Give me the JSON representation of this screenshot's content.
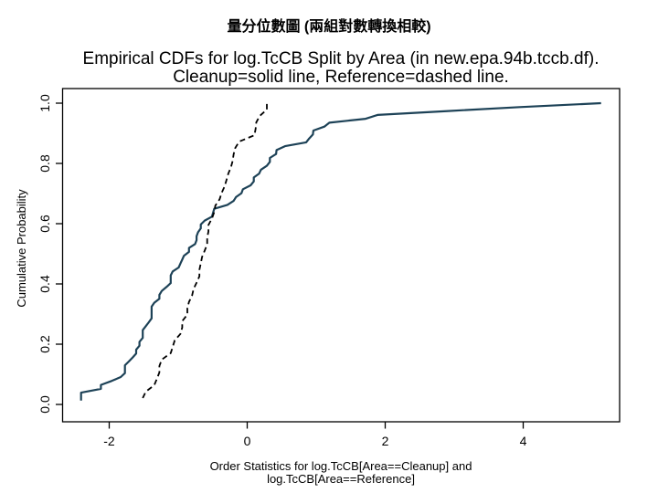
{
  "slide": {
    "title_zh": "量分位數圖 (兩組對數轉換相較)"
  },
  "chart_data": {
    "type": "line",
    "subtype": "empirical-cdf",
    "title_line1": "Empirical CDFs for log.TcCB Split by Area (in new.epa.94b.tccb.df).",
    "title_line2": "Cleanup=solid line, Reference=dashed line.",
    "ylabel": "Cumulative Probability",
    "xlabel_line1": "Order Statistics for log.TcCB[Area==Cleanup] and",
    "xlabel_line2": "log.TcCB[Area==Reference]",
    "x_tick_labels": [
      "-2",
      "0",
      "2",
      "4"
    ],
    "x_tick_values": [
      -2,
      0,
      2,
      4
    ],
    "y_tick_labels": [
      "0.0",
      "0.2",
      "0.4",
      "0.6",
      "0.8",
      "1.0"
    ],
    "y_tick_values": [
      0,
      0.2,
      0.4,
      0.6,
      0.8,
      1.0
    ],
    "xlim": [
      -2.68,
      5.4
    ],
    "ylim": [
      -0.07,
      1.04
    ],
    "grid": false,
    "frame_color": "#000000",
    "ecdf_probability_rule": "i/n",
    "series": [
      {
        "name": "Cleanup",
        "line_style": "solid",
        "color": "#1d4257",
        "n": 77,
        "order_statistics_log": [
          -2.408,
          -2.408,
          -2.408,
          -2.12,
          -2.12,
          -1.966,
          -1.833,
          -1.772,
          -1.772,
          -1.772,
          -1.715,
          -1.661,
          -1.609,
          -1.609,
          -1.561,
          -1.561,
          -1.514,
          -1.514,
          -1.514,
          -1.47,
          -1.427,
          -1.386,
          -1.386,
          -1.386,
          -1.386,
          -1.347,
          -1.273,
          -1.273,
          -1.238,
          -1.171,
          -1.109,
          -1.109,
          -1.109,
          -1.079,
          -0.994,
          -0.968,
          -0.942,
          -0.916,
          -0.844,
          -0.844,
          -0.755,
          -0.734,
          -0.734,
          -0.713,
          -0.673,
          -0.673,
          -0.616,
          -0.511,
          -0.494,
          -0.478,
          -0.288,
          -0.198,
          -0.163,
          -0.083,
          -0.062,
          0.049,
          0.095,
          0.095,
          0.174,
          0.199,
          0.285,
          0.329,
          0.329,
          0.419,
          0.425,
          0.548,
          0.854,
          0.9,
          0.952,
          0.959,
          1.118,
          1.191,
          1.716,
          1.889,
          2.912,
          3.95,
          5.128
        ]
      },
      {
        "name": "Reference",
        "line_style": "dashed",
        "color": "#000000",
        "n": 47,
        "order_statistics_log": [
          -1.514,
          -1.47,
          -1.347,
          -1.309,
          -1.273,
          -1.273,
          -1.238,
          -1.109,
          -1.079,
          -1.05,
          -0.968,
          -0.942,
          -0.942,
          -0.868,
          -0.868,
          -0.844,
          -0.799,
          -0.777,
          -0.734,
          -0.693,
          -0.693,
          -0.673,
          -0.654,
          -0.616,
          -0.58,
          -0.58,
          -0.562,
          -0.562,
          -0.511,
          -0.478,
          -0.462,
          -0.4,
          -0.371,
          -0.329,
          -0.301,
          -0.274,
          -0.236,
          -0.211,
          -0.198,
          -0.174,
          -0.117,
          0.104,
          0.122,
          0.131,
          0.182,
          0.285,
          0.285
        ]
      }
    ]
  }
}
